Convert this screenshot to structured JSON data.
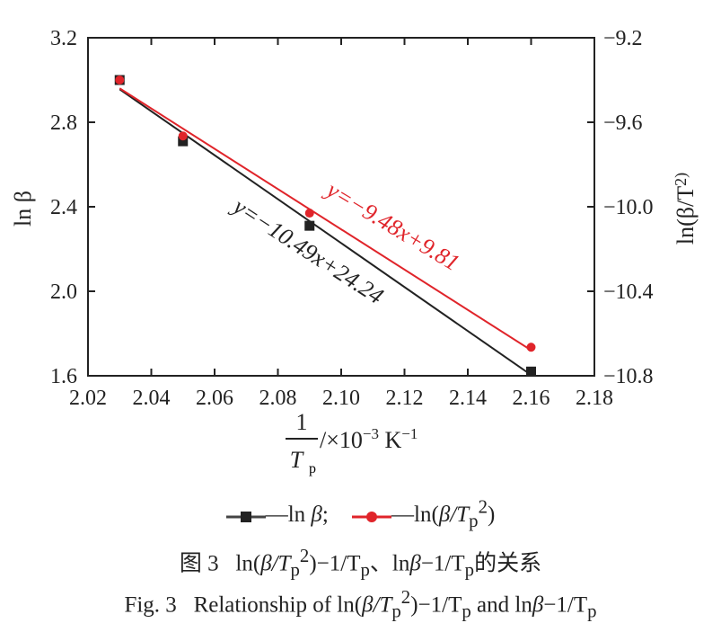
{
  "chart_data": {
    "type": "scatter",
    "xlabel_num": "1",
    "xlabel_den": "T",
    "xlabel_den_sub": "p",
    "xlabel_unit": "/×10",
    "xlabel_exp": "−3",
    "xlabel_unit2": " K",
    "xlabel_exp2": "−1",
    "ylabel_left": "ln β",
    "ylabel_right": "ln(β/T",
    "ylabel_right_tail": "2)",
    "xlim": [
      2.02,
      2.18
    ],
    "ylim_left": [
      1.6,
      3.2
    ],
    "ylim_right": [
      -10.8,
      -9.2
    ],
    "x_ticks": [
      "2.02",
      "2.04",
      "2.06",
      "2.08",
      "2.10",
      "2.12",
      "2.14",
      "2.16",
      "2.18"
    ],
    "y_left_ticks": [
      "1.6",
      "2.0",
      "2.4",
      "2.8",
      "3.2"
    ],
    "y_right_ticks": [
      "−10.8",
      "−10.4",
      "−10.0",
      "−9.6",
      "−9.2"
    ],
    "series": [
      {
        "name": "ln β",
        "axis": "left",
        "color": "#222222",
        "marker": "square",
        "x": [
          2.03,
          2.05,
          2.09,
          2.16
        ],
        "y": [
          3.0,
          2.71,
          2.31,
          1.62
        ],
        "fit": {
          "slope": -10.49,
          "intercept": 24.24,
          "label": "y=−10.49x+24.24"
        }
      },
      {
        "name": "ln(β/T_p^2)",
        "axis": "right",
        "color": "#e0242a",
        "marker": "circle",
        "x": [
          2.03,
          2.05,
          2.09,
          2.16
        ],
        "y": [
          -9.4,
          -9.665,
          -10.03,
          -10.665
        ],
        "fit": {
          "slope": -9.48,
          "intercept": 9.81,
          "label": "y=−9.48x+9.81"
        }
      }
    ]
  },
  "legend": {
    "item1_prefix": "—ln",
    "item1_beta": "β",
    "item1_sep": ";",
    "item2_prefix": "—ln",
    "item2_open": "(",
    "item2_beta": "β",
    "item2_slash": "/T",
    "item2_sub": "p",
    "item2_sup": "2",
    "item2_close": ")"
  },
  "caption": {
    "cn_label": "图 3",
    "cn_a": "ln(",
    "cn_b": "β",
    "cn_c": "/T",
    "cn_d": "p",
    "cn_e": "2",
    "cn_f": ")−1/T",
    "cn_g": "p",
    "cn_h": "、ln",
    "cn_i": "β",
    "cn_j": "−1/T",
    "cn_k": "p",
    "cn_l": "的关系",
    "en_label": "Fig. 3",
    "en_a": "Relationship of ln(",
    "en_b": "β",
    "en_c": "/T",
    "en_d": "p",
    "en_e": "2",
    "en_f": ")−1/T",
    "en_g": "p",
    "en_h": " and ln",
    "en_i": "β",
    "en_j": "−1/T",
    "en_k": "p"
  }
}
